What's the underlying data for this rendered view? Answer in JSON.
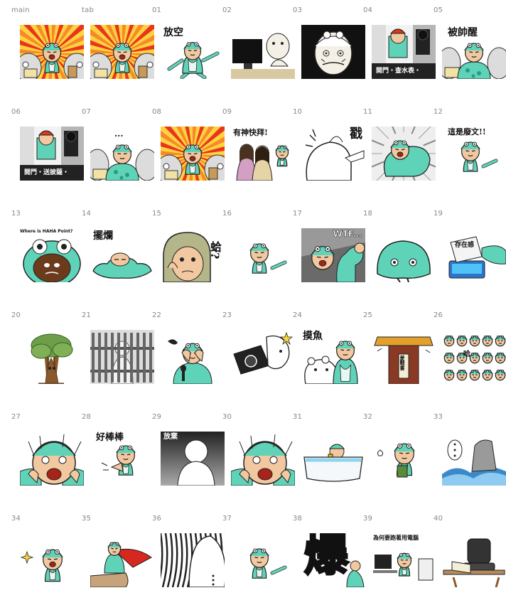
{
  "colors": {
    "teal": "#5fd3b8",
    "teal_dark": "#2a9a82",
    "skin": "#f2c8a0",
    "burst_red": "#e8351d",
    "burst_yellow": "#ffd23f",
    "label_gray": "#888888"
  },
  "stickers": [
    {
      "label": "main",
      "scene": "burst"
    },
    {
      "label": "tab",
      "scene": "burst"
    },
    {
      "label": "01",
      "scene": "float",
      "caption": "放空"
    },
    {
      "label": "02",
      "scene": "monitor"
    },
    {
      "label": "03",
      "scene": "dark-face"
    },
    {
      "label": "04",
      "scene": "door",
      "caption": "開門‧查水表‧"
    },
    {
      "label": "05",
      "scene": "dots",
      "caption": "被帥醒"
    },
    {
      "label": "06",
      "scene": "door",
      "caption": "開門‧送披薩‧"
    },
    {
      "label": "07",
      "scene": "dots",
      "caption": "..."
    },
    {
      "label": "08",
      "scene": "burst"
    },
    {
      "label": "09",
      "scene": "friends",
      "caption": "有神快拜!"
    },
    {
      "label": "10",
      "scene": "stab",
      "caption": "戳"
    },
    {
      "label": "11",
      "scene": "speed",
      "caption": ""
    },
    {
      "label": "12",
      "scene": "plain",
      "caption": "這是廢文!!"
    },
    {
      "label": "13",
      "scene": "big-frog",
      "caption": "Where is HAHA Point?"
    },
    {
      "label": "14",
      "scene": "melt",
      "caption": "擺爛"
    },
    {
      "label": "15",
      "scene": "helmet",
      "caption": "蛤?"
    },
    {
      "label": "16",
      "scene": "plain"
    },
    {
      "label": "17",
      "scene": "muscle",
      "caption": "WTF..."
    },
    {
      "label": "18",
      "scene": "blob"
    },
    {
      "label": "19",
      "scene": "card",
      "caption": "存在感"
    },
    {
      "label": "20",
      "scene": "tree"
    },
    {
      "label": "21",
      "scene": "fence"
    },
    {
      "label": "22",
      "scene": "cry"
    },
    {
      "label": "23",
      "scene": "camera"
    },
    {
      "label": "24",
      "scene": "bear",
      "caption": "摸魚"
    },
    {
      "label": "25",
      "scene": "sign",
      "caption": "愛戰書"
    },
    {
      "label": "26",
      "scene": "crowd",
      "caption": "哈"
    },
    {
      "label": "27",
      "scene": "scream"
    },
    {
      "label": "28",
      "scene": "clap",
      "caption": "好棒棒"
    },
    {
      "label": "29",
      "scene": "back",
      "caption": "放棄"
    },
    {
      "label": "30",
      "scene": "scream"
    },
    {
      "label": "31",
      "scene": "bath"
    },
    {
      "label": "32",
      "scene": "cup"
    },
    {
      "label": "33",
      "scene": "wave"
    },
    {
      "label": "34",
      "scene": "sparkle"
    },
    {
      "label": "35",
      "scene": "cape"
    },
    {
      "label": "36",
      "scene": "shadow"
    },
    {
      "label": "37",
      "scene": "plain"
    },
    {
      "label": "38",
      "scene": "big-char",
      "caption": "爆"
    },
    {
      "label": "39",
      "scene": "office",
      "caption": "為何要跑著用電腦"
    },
    {
      "label": "40",
      "scene": "chair"
    }
  ]
}
